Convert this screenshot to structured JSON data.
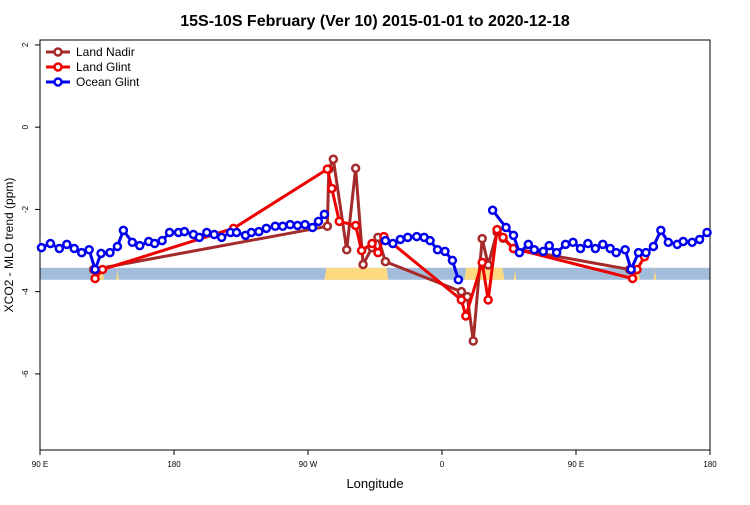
{
  "chart_data": {
    "type": "line",
    "title": "15S-10S February (Ver 10)   2015-01-01 to 2020-12-18",
    "xlabel": "Longitude",
    "ylabel": "XCO2 - MLO trend (ppm)",
    "xlim": [
      90,
      540
    ],
    "ylim": [
      -7.85,
      2.12
    ],
    "xticks": [
      {
        "value": 90,
        "label": "90 E"
      },
      {
        "value": 180,
        "label": "180"
      },
      {
        "value": 270,
        "label": "90 W"
      },
      {
        "value": 360,
        "label": "0"
      },
      {
        "value": 450,
        "label": "90 E"
      },
      {
        "value": 540,
        "label": "180"
      }
    ],
    "yticks": [
      2,
      0,
      -2,
      -4,
      -6
    ],
    "legend": "top-left",
    "land_mask": {
      "ocean_color": "#a2bcdc",
      "land_color": "#fdd980",
      "band": [
        -3.42,
        -3.71
      ],
      "land": [
        [
          124,
          133
        ],
        [
          141,
          143
        ],
        [
          281,
          324
        ],
        [
          375,
          402
        ],
        [
          408,
          410
        ],
        [
          485,
          493
        ],
        [
          502,
          504
        ]
      ]
    },
    "series": [
      {
        "name": "Land Nadir",
        "color": "#a52a2a",
        "x": [
          126,
          283,
          284,
          287,
          296,
          302,
          307,
          313,
          317,
          322,
          373,
          377,
          381,
          387,
          391,
          397,
          401,
          408,
          486
        ],
        "values": [
          -3.46,
          -2.41,
          -1.02,
          -0.78,
          -2.98,
          -1.0,
          -3.34,
          -2.93,
          -2.68,
          -3.27,
          -4.0,
          -4.12,
          -5.2,
          -2.71,
          -3.35,
          -2.55,
          -2.7,
          -2.95,
          -3.46
        ]
      },
      {
        "name": "Land Glint",
        "color": "#ee0000",
        "x": [
          127,
          132,
          220,
          283,
          286,
          291,
          302,
          306,
          313,
          317,
          321,
          373,
          376,
          387,
          391,
          397,
          401,
          408,
          488,
          491,
          496
        ],
        "values": [
          -3.68,
          -3.46,
          -2.46,
          -1.02,
          -1.49,
          -2.29,
          -2.39,
          -3.0,
          -2.83,
          -3.05,
          -2.66,
          -4.2,
          -4.59,
          -3.29,
          -4.2,
          -2.49,
          -2.68,
          -2.95,
          -3.68,
          -3.46,
          -3.15
        ]
      },
      {
        "name": "Ocean Glint",
        "color": "#0000ee",
        "x": [
          91,
          97,
          103,
          108,
          113,
          118,
          123,
          127,
          131,
          137,
          142,
          146,
          152,
          157,
          163,
          167,
          172,
          177,
          183,
          187,
          193,
          197,
          202,
          207,
          212,
          218,
          222,
          228,
          232,
          237,
          242,
          248,
          253,
          258,
          263,
          268,
          273,
          277,
          281,
          300,
          322,
          327,
          332,
          337,
          343,
          348,
          352,
          357,
          362,
          367,
          371,
          385,
          394,
          403,
          408,
          412,
          418,
          422,
          428,
          432,
          437,
          443,
          448,
          453,
          458,
          463,
          468,
          473,
          477,
          483,
          487,
          492,
          497,
          502,
          507,
          512,
          518,
          522,
          528,
          533,
          538
        ],
        "values": [
          -2.93,
          -2.83,
          -2.95,
          -2.85,
          -2.95,
          -3.05,
          -2.98,
          -3.46,
          -3.07,
          -3.05,
          -2.9,
          -2.51,
          -2.8,
          -2.88,
          -2.78,
          -2.83,
          -2.76,
          -2.56,
          -2.56,
          -2.54,
          -2.61,
          -2.68,
          -2.56,
          -2.61,
          -2.68,
          -2.56,
          -2.56,
          -2.63,
          -2.56,
          -2.54,
          -2.46,
          -2.41,
          -2.41,
          -2.37,
          -2.39,
          -2.37,
          -2.44,
          -2.29,
          -2.12,
          null,
          -2.76,
          -2.83,
          -2.73,
          -2.68,
          -2.66,
          -2.68,
          -2.76,
          -2.98,
          -3.02,
          -3.24,
          -3.71,
          null,
          -2.02,
          -2.44,
          -2.63,
          -3.05,
          -2.85,
          -2.98,
          -3.02,
          -2.88,
          -3.05,
          -2.85,
          -2.8,
          -2.95,
          -2.83,
          -2.95,
          -2.85,
          -2.95,
          -3.05,
          -2.98,
          -3.46,
          -3.05,
          -3.05,
          -2.9,
          -2.51,
          -2.8,
          -2.85,
          -2.78,
          -2.8,
          -2.73,
          -2.56
        ]
      }
    ]
  }
}
